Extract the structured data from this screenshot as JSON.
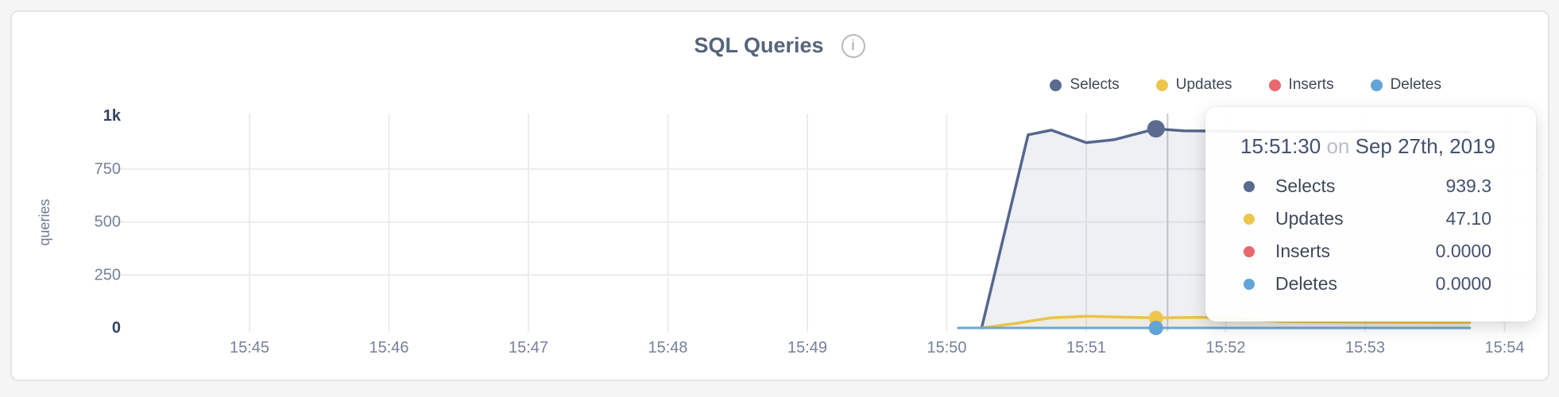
{
  "page": {
    "background": "#f5f5f6",
    "card_background": "#ffffff",
    "card_border": "#e4e4e6"
  },
  "header": {
    "title": "SQL Queries",
    "info_icon": "i"
  },
  "legend": {
    "items": [
      {
        "label": "Selects",
        "color": "#5a6b8f"
      },
      {
        "label": "Updates",
        "color": "#edc64d"
      },
      {
        "label": "Inserts",
        "color": "#e8686d"
      },
      {
        "label": "Deletes",
        "color": "#62a4d6"
      }
    ]
  },
  "tooltip": {
    "time": "15:51:30",
    "connector": "on",
    "date": "Sep 27th, 2019",
    "rows": [
      {
        "name": "Selects",
        "value": "939.3",
        "color": "#5a6b8f"
      },
      {
        "name": "Updates",
        "value": "47.10",
        "color": "#edc64d"
      },
      {
        "name": "Inserts",
        "value": "0.0000",
        "color": "#e8686d"
      },
      {
        "name": "Deletes",
        "value": "0.0000",
        "color": "#62a4d6"
      }
    ]
  },
  "chart_data": {
    "type": "area",
    "title": "SQL Queries",
    "xlabel": "",
    "ylabel": "queries",
    "ylim": [
      0,
      1000
    ],
    "grid": true,
    "legend_position": "top-right",
    "x_start": "15:45:00",
    "x_end": "15:54:00",
    "x_ticks": [
      "15:45",
      "15:46",
      "15:47",
      "15:48",
      "15:49",
      "15:50",
      "15:51",
      "15:52",
      "15:53",
      "15:54"
    ],
    "y_ticks": [
      {
        "value": 0,
        "label": "0",
        "emphasis": true
      },
      {
        "value": 250,
        "label": "250",
        "emphasis": false
      },
      {
        "value": 500,
        "label": "500",
        "emphasis": false
      },
      {
        "value": 750,
        "label": "750",
        "emphasis": false
      },
      {
        "value": 1000,
        "label": "1k",
        "emphasis": true
      }
    ],
    "hover_point": {
      "time": "15:51:30",
      "hover_line_time": "15:51:35"
    },
    "colors": {
      "gridline": "#ececee",
      "crosshair": "#c9cbd0",
      "tick_label": "#76809b",
      "tick_label_emphasis": "#33425f",
      "axis_title": "#6e7a96"
    },
    "series": [
      {
        "name": "Selects",
        "color": "#5a6b8f",
        "line_color": "#55678e",
        "fill": "rgba(90,107,143,0.10)",
        "marker_radius": 11,
        "line_width": 3.5,
        "points": [
          [
            "15:50:15",
            0
          ],
          [
            "15:50:35",
            911
          ],
          [
            "15:50:45",
            933
          ],
          [
            "15:51:00",
            874
          ],
          [
            "15:51:12",
            888
          ],
          [
            "15:51:30",
            939.3
          ],
          [
            "15:51:42",
            930
          ],
          [
            "15:52:00",
            928
          ],
          [
            "15:52:30",
            925
          ],
          [
            "15:53:00",
            927
          ],
          [
            "15:53:45",
            925
          ]
        ]
      },
      {
        "name": "Updates",
        "color": "#edc64d",
        "line_color": "#eac348",
        "fill": "rgba(237,198,77,0.10)",
        "marker_radius": 9,
        "line_width": 3.5,
        "points": [
          [
            "15:50:15",
            0
          ],
          [
            "15:50:30",
            22
          ],
          [
            "15:50:45",
            48
          ],
          [
            "15:51:00",
            55
          ],
          [
            "15:51:30",
            47.1
          ],
          [
            "15:51:50",
            50
          ],
          [
            "15:52:05",
            42
          ],
          [
            "15:52:25",
            30
          ],
          [
            "15:53:00",
            27
          ],
          [
            "15:53:45",
            26
          ]
        ]
      },
      {
        "name": "Inserts",
        "color": "#e8686d",
        "line_color": "#e8686d",
        "fill": "none",
        "marker_radius": 9,
        "line_width": 3,
        "points": [
          [
            "15:50:05",
            0
          ],
          [
            "15:53:45",
            0
          ]
        ]
      },
      {
        "name": "Deletes",
        "color": "#62a4d6",
        "line_color": "#6ba7d5",
        "fill": "none",
        "marker_radius": 9,
        "line_width": 3,
        "points": [
          [
            "15:50:05",
            0
          ],
          [
            "15:53:45",
            0
          ]
        ]
      }
    ]
  }
}
